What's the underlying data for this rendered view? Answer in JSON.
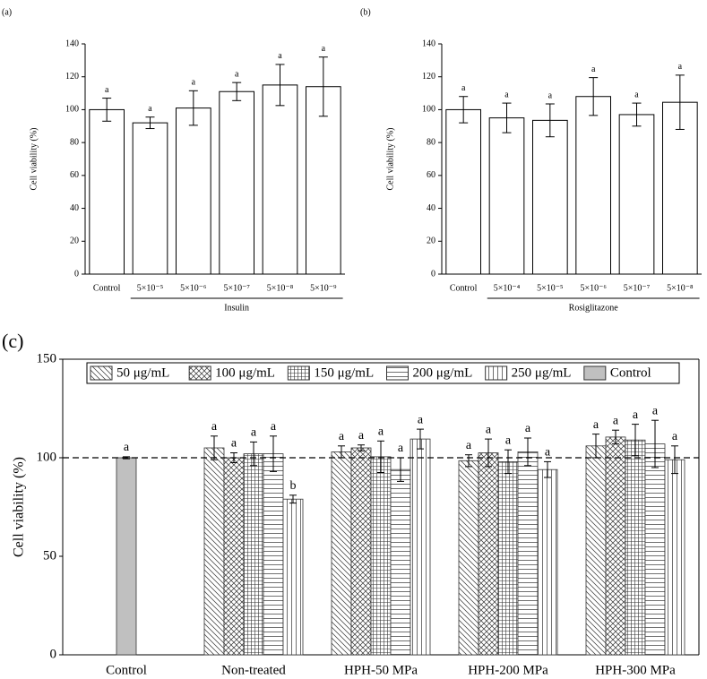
{
  "chart_data": [
    {
      "type": "bar",
      "panel": "(a)",
      "ylabel": "Cell viability (%)",
      "group": "Insulin",
      "categories": [
        "Control",
        "5×10⁻⁵",
        "5×10⁻⁶",
        "5×10⁻⁷",
        "5×10⁻⁸",
        "5×10⁻⁹"
      ],
      "values": [
        100,
        92,
        101,
        111,
        115,
        114
      ],
      "errors": [
        7,
        3.5,
        10.5,
        5.5,
        12.5,
        18
      ],
      "labels": [
        "a",
        "a",
        "a",
        "a",
        "a",
        "a"
      ],
      "color": "#ffffff",
      "ylim": [
        0,
        140
      ],
      "yticks": [
        0,
        20,
        40,
        60,
        80,
        100,
        120,
        140
      ]
    },
    {
      "type": "bar",
      "panel": "(b)",
      "ylabel": "Cell viability (%)",
      "group": "Rosiglitazone",
      "categories": [
        "Control",
        "5×10⁻⁴",
        "5×10⁻⁵",
        "5×10⁻⁶",
        "5×10⁻⁷",
        "5×10⁻⁸"
      ],
      "values": [
        100,
        95,
        93.5,
        108,
        97,
        104.5
      ],
      "errors": [
        8,
        9,
        10,
        11.5,
        7,
        16.5
      ],
      "labels": [
        "a",
        "a",
        "a",
        "a",
        "a",
        "a"
      ],
      "color": "#ffffff",
      "ylim": [
        0,
        140
      ],
      "yticks": [
        0,
        20,
        40,
        60,
        80,
        100,
        120,
        140
      ]
    },
    {
      "type": "grouped_bar",
      "panel": "(c)",
      "ylabel": "Cell viability (%)",
      "categories": [
        "Control",
        "Non-treated",
        "HPH-50 MPa",
        "HPH-200 MPa",
        "HPH-300 MPa"
      ],
      "ylim": [
        0,
        150
      ],
      "yticks": [
        0,
        50,
        100,
        150
      ],
      "reference_line": 100,
      "legend": "top",
      "series": [
        {
          "name": "50 μg/mL",
          "hatch": "backslash",
          "color": "#ffffff",
          "values": [
            null,
            105,
            103,
            98.5,
            106
          ],
          "errors": [
            null,
            6,
            3,
            3,
            6
          ],
          "labels": [
            null,
            "a",
            "a",
            "a",
            "a"
          ]
        },
        {
          "name": "100 μg/mL",
          "hatch": "cross",
          "color": "#ffffff",
          "values": [
            null,
            100,
            105,
            102.5,
            110.5
          ],
          "errors": [
            null,
            2.5,
            1.5,
            7,
            3.5
          ],
          "labels": [
            null,
            "a",
            "a",
            "a",
            "a"
          ]
        },
        {
          "name": "150 μg/mL",
          "hatch": "grid",
          "color": "#ffffff",
          "values": [
            null,
            102,
            100.5,
            98,
            109
          ],
          "errors": [
            null,
            6,
            8,
            6,
            8
          ],
          "labels": [
            null,
            "a",
            "a",
            "a",
            "a"
          ]
        },
        {
          "name": "200 μg/mL",
          "hatch": "horizontal",
          "color": "#ffffff",
          "values": [
            null,
            102,
            94,
            103,
            107
          ],
          "errors": [
            null,
            9,
            6,
            7,
            12
          ],
          "labels": [
            null,
            "a",
            "a",
            "a",
            "a"
          ]
        },
        {
          "name": "250 μg/mL",
          "hatch": "vertical",
          "color": "#ffffff",
          "values": [
            null,
            79,
            109.5,
            94,
            99
          ],
          "errors": [
            null,
            2,
            5,
            4,
            7
          ],
          "labels": [
            null,
            "b",
            "a",
            "a",
            "a"
          ]
        },
        {
          "name": "Control",
          "hatch": "none",
          "color": "#c0c0c0",
          "values": [
            100,
            null,
            null,
            null,
            null
          ],
          "errors": [
            0.5,
            null,
            null,
            null,
            null
          ],
          "labels": [
            "a",
            null,
            null,
            null,
            null
          ]
        }
      ]
    }
  ]
}
